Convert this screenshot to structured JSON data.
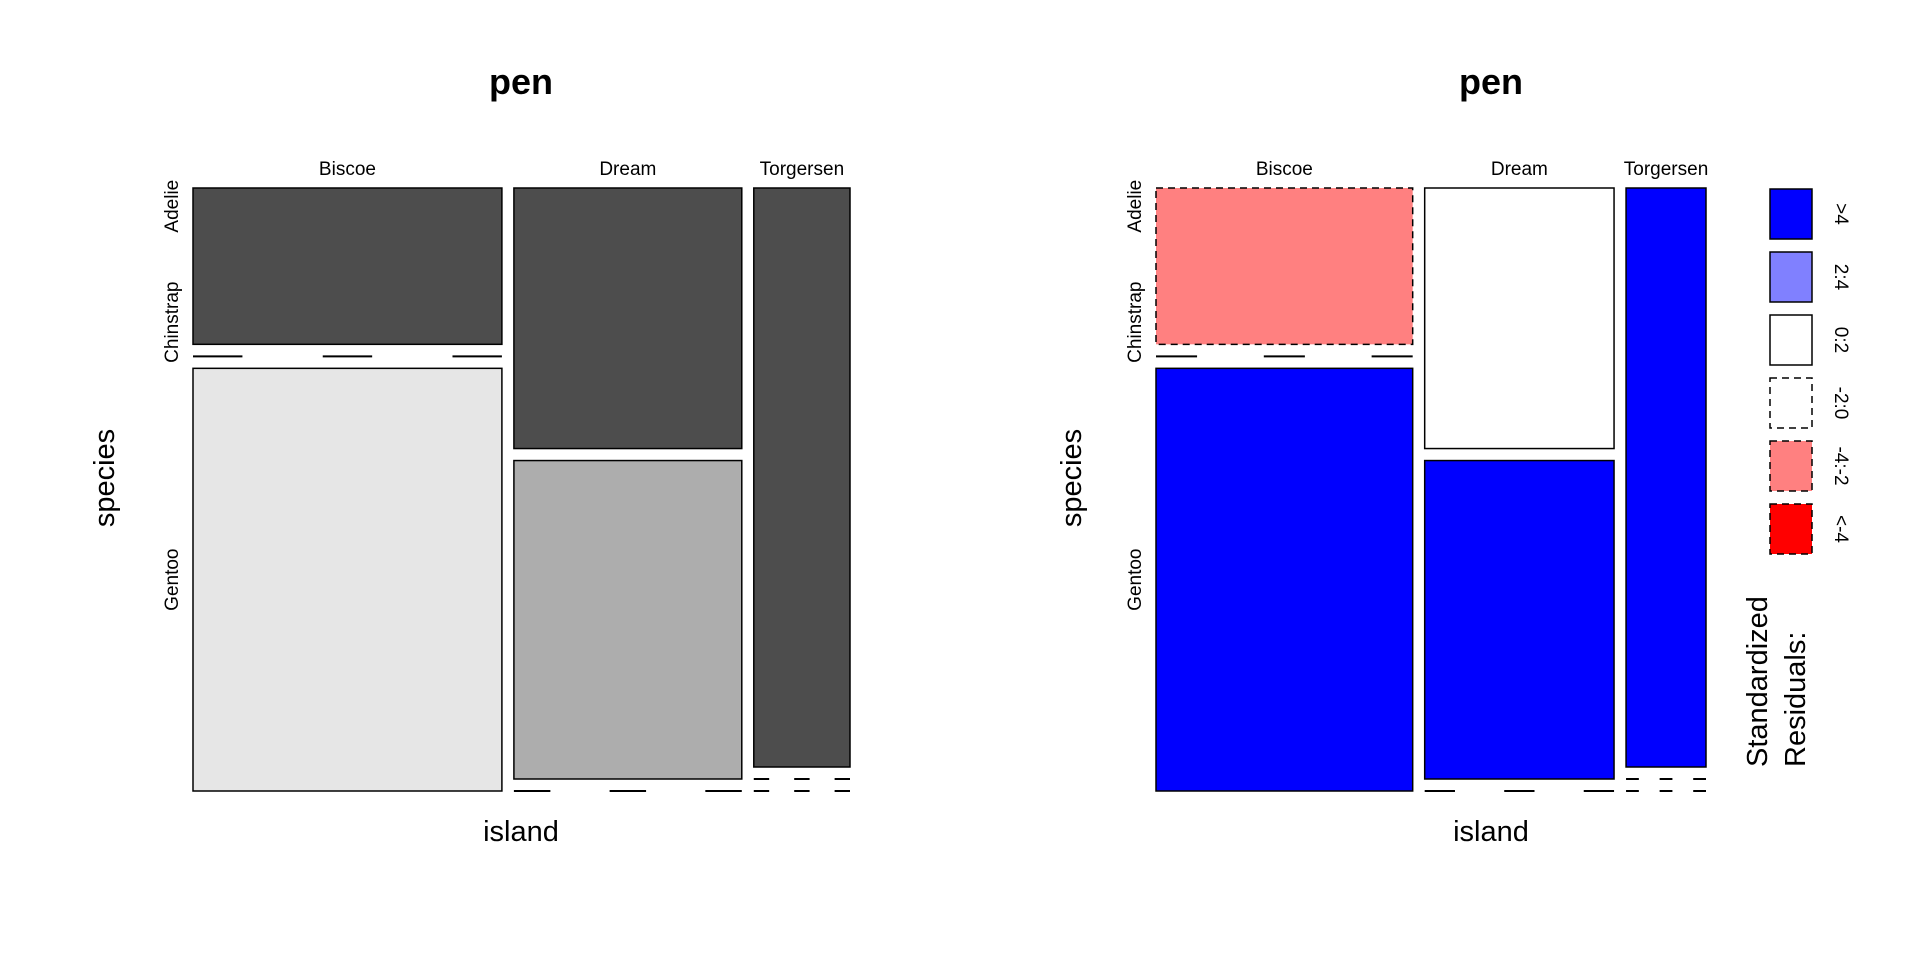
{
  "chart_data": [
    {
      "type": "mosaic",
      "title": "pen",
      "xlabel": "island",
      "ylabel": "species",
      "x_categories": [
        "Biscoe",
        "Dream",
        "Torgersen"
      ],
      "y_categories": [
        "Adelie",
        "Chinstrap",
        "Gentoo"
      ],
      "column_proportions": [
        0.488,
        0.36,
        0.152
      ],
      "cell_proportions": {
        "Biscoe": [
          0.27,
          0.0,
          0.73
        ],
        "Dream": [
          0.45,
          0.55,
          0.0
        ],
        "Torgersen": [
          1.0,
          0.0,
          0.0
        ]
      },
      "fill_colors": {
        "Biscoe": [
          "#4d4d4d",
          null,
          "#e6e6e6"
        ],
        "Dream": [
          "#4d4d4d",
          "#adadad",
          null
        ],
        "Torgersen": [
          "#4d4d4d",
          null,
          null
        ]
      },
      "border_dashed": {
        "Biscoe": [
          false,
          false,
          false
        ],
        "Dream": [
          false,
          false,
          false
        ],
        "Torgersen": [
          false,
          false,
          false
        ]
      }
    },
    {
      "type": "mosaic",
      "title": "pen",
      "xlabel": "island",
      "ylabel": "species",
      "x_categories": [
        "Biscoe",
        "Dream",
        "Torgersen"
      ],
      "y_categories": [
        "Adelie",
        "Chinstrap",
        "Gentoo"
      ],
      "column_proportions": [
        0.488,
        0.36,
        0.152
      ],
      "cell_proportions": {
        "Biscoe": [
          0.27,
          0.0,
          0.73
        ],
        "Dream": [
          0.45,
          0.55,
          0.0
        ],
        "Torgersen": [
          1.0,
          0.0,
          0.0
        ]
      },
      "fill_colors": {
        "Biscoe": [
          "#ff8080",
          null,
          "#0000ff"
        ],
        "Dream": [
          "#ffffff",
          "#0000ff",
          null
        ],
        "Torgersen": [
          "#0000ff",
          null,
          null
        ]
      },
      "border_dashed": {
        "Biscoe": [
          true,
          false,
          false
        ],
        "Dream": [
          false,
          false,
          false
        ],
        "Torgersen": [
          false,
          false,
          false
        ]
      },
      "legend": {
        "title_lines": [
          "Standardized",
          "Residuals:"
        ],
        "items": [
          {
            "label": ">4",
            "color": "#0000ff",
            "dashed": false
          },
          {
            "label": "2:4",
            "color": "#8080ff",
            "dashed": false
          },
          {
            "label": "0:2",
            "color": "#ffffff",
            "dashed": false
          },
          {
            "label": "-2:0",
            "color": "#ffffff",
            "dashed": true
          },
          {
            "label": "-4:-2",
            "color": "#ff8080",
            "dashed": true
          },
          {
            "label": "<-4",
            "color": "#ff0000",
            "dashed": true
          }
        ]
      }
    }
  ]
}
